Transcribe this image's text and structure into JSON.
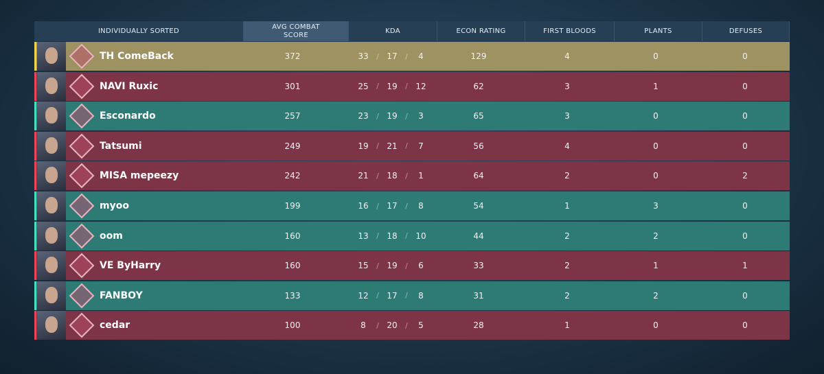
{
  "table": {
    "columns": [
      "INDIVIDUALLY SORTED",
      "AVG COMBAT SCORE",
      "KDA",
      "ECON RATING",
      "FIRST BLOODS",
      "PLANTS",
      "DEFUSES"
    ],
    "separator": "/",
    "rows": [
      {
        "player": "TH ComeBack",
        "acs": 372,
        "kills": 33,
        "deaths": 17,
        "assists": 4,
        "econ": 129,
        "first_bloods": 4,
        "plants": 0,
        "defuses": 0,
        "color": "#9e9262",
        "accent": "#f2d24a"
      },
      {
        "player": "NAVI Ruxic",
        "acs": 301,
        "kills": 25,
        "deaths": 19,
        "assists": 12,
        "econ": 62,
        "first_bloods": 3,
        "plants": 1,
        "defuses": 0,
        "color": "#7e3447",
        "accent": "#ee4455"
      },
      {
        "player": "Esconardo",
        "acs": 257,
        "kills": 23,
        "deaths": 19,
        "assists": 3,
        "econ": 65,
        "first_bloods": 3,
        "plants": 0,
        "defuses": 0,
        "color": "#2e7b76",
        "accent": "#47e0bd"
      },
      {
        "player": "Tatsumi",
        "acs": 249,
        "kills": 19,
        "deaths": 21,
        "assists": 7,
        "econ": 56,
        "first_bloods": 4,
        "plants": 0,
        "defuses": 0,
        "color": "#7e3447",
        "accent": "#ee4455"
      },
      {
        "player": "MISA mepeezy",
        "acs": 242,
        "kills": 21,
        "deaths": 18,
        "assists": 1,
        "econ": 64,
        "first_bloods": 2,
        "plants": 0,
        "defuses": 2,
        "color": "#7e3447",
        "accent": "#ee4455"
      },
      {
        "player": "myoo",
        "acs": 199,
        "kills": 16,
        "deaths": 17,
        "assists": 8,
        "econ": 54,
        "first_bloods": 1,
        "plants": 3,
        "defuses": 0,
        "color": "#2e7b76",
        "accent": "#47e0bd"
      },
      {
        "player": "oom",
        "acs": 160,
        "kills": 13,
        "deaths": 18,
        "assists": 10,
        "econ": 44,
        "first_bloods": 2,
        "plants": 2,
        "defuses": 0,
        "color": "#2e7b76",
        "accent": "#47e0bd"
      },
      {
        "player": "VE ByHarry",
        "acs": 160,
        "kills": 15,
        "deaths": 19,
        "assists": 6,
        "econ": 33,
        "first_bloods": 2,
        "plants": 1,
        "defuses": 1,
        "color": "#7e3447",
        "accent": "#ee4455"
      },
      {
        "player": "FANBOY",
        "acs": 133,
        "kills": 12,
        "deaths": 17,
        "assists": 8,
        "econ": 31,
        "first_bloods": 2,
        "plants": 2,
        "defuses": 0,
        "color": "#2e7b76",
        "accent": "#47e0bd"
      },
      {
        "player": "cedar",
        "acs": 100,
        "kills": 8,
        "deaths": 20,
        "assists": 5,
        "econ": 28,
        "first_bloods": 1,
        "plants": 0,
        "defuses": 0,
        "color": "#7e3447",
        "accent": "#ee4455"
      }
    ]
  }
}
